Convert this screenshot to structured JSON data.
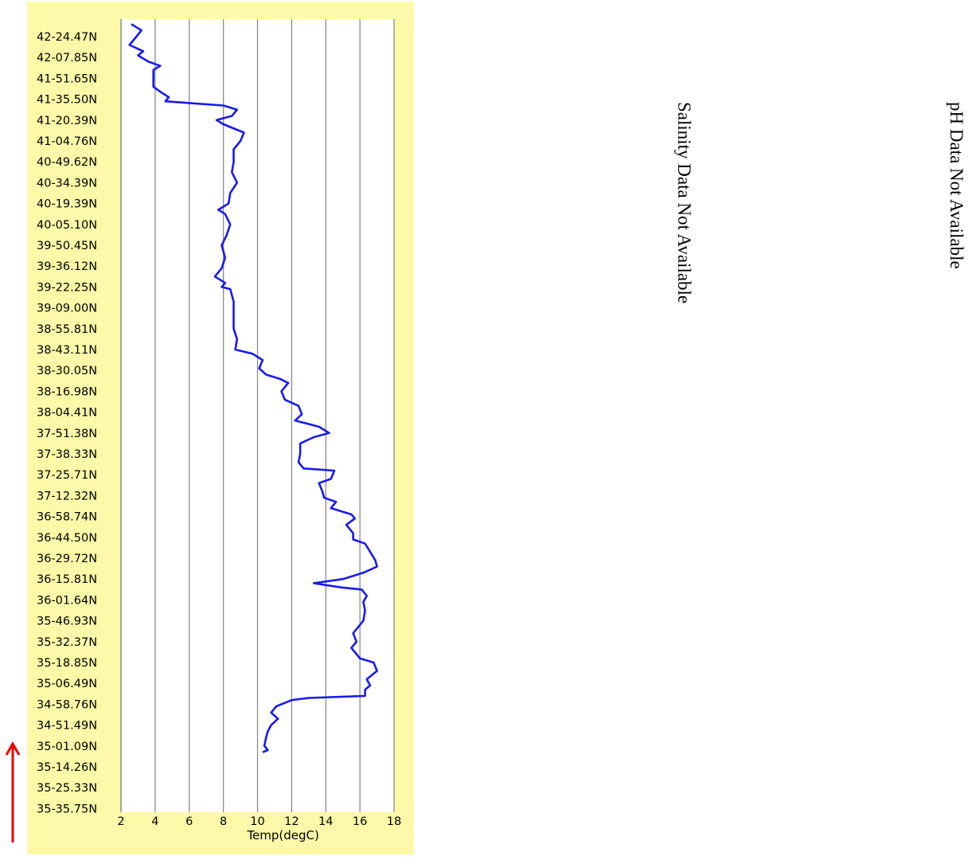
{
  "chart_data": {
    "type": "line",
    "xlabel": "Temp(degC)",
    "xlim": [
      2,
      18
    ],
    "x_ticks": [
      2,
      4,
      6,
      8,
      10,
      12,
      14,
      16,
      18
    ],
    "x_tick_labels": [
      "2",
      "4",
      "6",
      "8",
      "10",
      "12",
      "14",
      "16",
      "18"
    ],
    "grid": "vertical",
    "y_categories": [
      "42-24.47N",
      "42-07.85N",
      "41-51.65N",
      "41-35.50N",
      "41-20.39N",
      "41-04.76N",
      "40-49.62N",
      "40-34.39N",
      "40-19.39N",
      "40-05.10N",
      "39-50.45N",
      "39-36.12N",
      "39-22.25N",
      "39-09.00N",
      "38-55.81N",
      "38-43.11N",
      "38-30.05N",
      "38-16.98N",
      "38-04.41N",
      "37-51.38N",
      "37-38.33N",
      "37-25.71N",
      "37-12.32N",
      "36-58.74N",
      "36-44.50N",
      "36-29.72N",
      "36-15.81N",
      "36-01.64N",
      "35-46.93N",
      "35-32.37N",
      "35-18.85N",
      "35-06.49N",
      "34-58.76N",
      "34-51.49N",
      "35-01.09N",
      "35-14.26N",
      "35-25.33N",
      "35-35.75N"
    ],
    "series": [
      {
        "color": "#1a1aee",
        "points": [
          [
            2.6,
            38.6
          ],
          [
            3.2,
            38.3
          ],
          [
            2.9,
            38.0
          ],
          [
            2.5,
            37.6
          ],
          [
            3.3,
            37.3
          ],
          [
            3.0,
            37.1
          ],
          [
            3.6,
            36.8
          ],
          [
            4.3,
            36.6
          ],
          [
            3.9,
            36.4
          ],
          [
            3.9,
            36.0
          ],
          [
            3.9,
            35.6
          ],
          [
            4.4,
            35.3
          ],
          [
            4.8,
            35.1
          ],
          [
            4.6,
            34.9
          ],
          [
            8.0,
            34.7
          ],
          [
            8.8,
            34.5
          ],
          [
            8.5,
            34.2
          ],
          [
            7.6,
            34.0
          ],
          [
            8.0,
            33.8
          ],
          [
            9.2,
            33.4
          ],
          [
            9.0,
            33.0
          ],
          [
            8.6,
            32.6
          ],
          [
            8.6,
            32.0
          ],
          [
            8.5,
            31.5
          ],
          [
            8.8,
            31.0
          ],
          [
            8.4,
            30.5
          ],
          [
            8.3,
            30.0
          ],
          [
            7.7,
            29.7
          ],
          [
            8.1,
            29.5
          ],
          [
            8.4,
            29.0
          ],
          [
            8.2,
            28.5
          ],
          [
            7.9,
            28.0
          ],
          [
            8.1,
            27.4
          ],
          [
            7.9,
            26.9
          ],
          [
            7.5,
            26.5
          ],
          [
            8.1,
            26.2
          ],
          [
            7.9,
            26.0
          ],
          [
            8.4,
            25.9
          ],
          [
            8.6,
            25.3
          ],
          [
            8.6,
            24.8
          ],
          [
            8.6,
            24.0
          ],
          [
            8.8,
            23.5
          ],
          [
            8.7,
            23.0
          ],
          [
            9.7,
            22.8
          ],
          [
            10.3,
            22.5
          ],
          [
            10.1,
            22.1
          ],
          [
            10.5,
            21.8
          ],
          [
            11.3,
            21.6
          ],
          [
            11.8,
            21.4
          ],
          [
            11.4,
            21.0
          ],
          [
            11.6,
            20.6
          ],
          [
            12.4,
            20.3
          ],
          [
            12.6,
            19.9
          ],
          [
            12.2,
            19.6
          ],
          [
            13.6,
            19.3
          ],
          [
            14.2,
            19.0
          ],
          [
            13.3,
            18.8
          ],
          [
            12.5,
            18.5
          ],
          [
            12.5,
            18.0
          ],
          [
            12.4,
            17.6
          ],
          [
            12.7,
            17.3
          ],
          [
            14.5,
            17.2
          ],
          [
            14.3,
            16.8
          ],
          [
            13.6,
            16.6
          ],
          [
            13.8,
            16.2
          ],
          [
            13.9,
            15.9
          ],
          [
            14.6,
            15.7
          ],
          [
            14.3,
            15.4
          ],
          [
            15.5,
            15.1
          ],
          [
            15.7,
            14.9
          ],
          [
            15.2,
            14.6
          ],
          [
            15.6,
            14.2
          ],
          [
            15.6,
            13.9
          ],
          [
            16.3,
            13.7
          ],
          [
            16.6,
            13.3
          ],
          [
            16.9,
            12.9
          ],
          [
            17.0,
            12.6
          ],
          [
            16.2,
            12.3
          ],
          [
            15.0,
            12.0
          ],
          [
            13.3,
            11.8
          ],
          [
            14.9,
            11.6
          ],
          [
            16.1,
            11.5
          ],
          [
            16.4,
            11.2
          ],
          [
            16.2,
            10.9
          ],
          [
            16.3,
            10.5
          ],
          [
            16.2,
            10.0
          ],
          [
            16.0,
            9.8
          ],
          [
            15.6,
            9.4
          ],
          [
            15.8,
            9.0
          ],
          [
            15.5,
            8.7
          ],
          [
            15.8,
            8.4
          ],
          [
            16.0,
            8.2
          ],
          [
            16.8,
            8.0
          ],
          [
            17.0,
            7.6
          ],
          [
            16.4,
            7.2
          ],
          [
            16.6,
            6.9
          ],
          [
            16.3,
            6.7
          ],
          [
            16.3,
            6.4
          ],
          [
            13.0,
            6.3
          ],
          [
            12.0,
            6.2
          ],
          [
            11.1,
            5.9
          ],
          [
            10.8,
            5.6
          ],
          [
            11.2,
            5.3
          ],
          [
            10.8,
            5.0
          ],
          [
            10.6,
            4.7
          ],
          [
            10.5,
            4.4
          ],
          [
            10.4,
            4.0
          ],
          [
            10.6,
            3.8
          ],
          [
            10.3,
            3.7
          ]
        ]
      }
    ]
  },
  "panels": {
    "salinity_message": "Salinity Data Not Available",
    "ph_message": "pH Data Not Available"
  },
  "indicators": {
    "arrow_color": "#ee0000",
    "arrow_direction": "up"
  }
}
